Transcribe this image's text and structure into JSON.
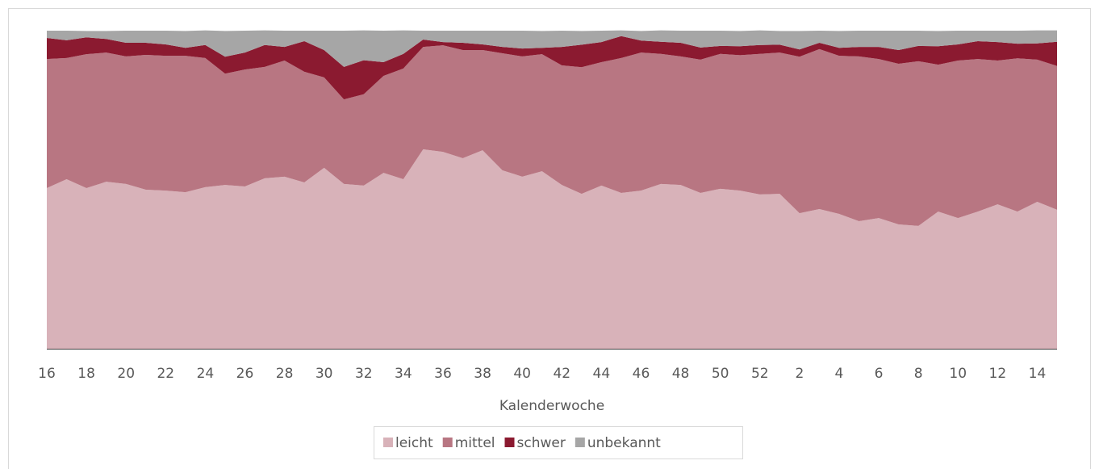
{
  "chart_data": {
    "type": "stacked-area",
    "x_label": "Kalenderwoche",
    "categories": [
      "16",
      null,
      "18",
      null,
      "20",
      null,
      "22",
      null,
      "24",
      null,
      "26",
      null,
      "28",
      null,
      "30",
      null,
      "32",
      null,
      "34",
      null,
      "36",
      null,
      "38",
      null,
      "40",
      null,
      "42",
      null,
      "44",
      null,
      "46",
      null,
      "48",
      null,
      "50",
      null,
      "52",
      null,
      "2",
      null,
      "4",
      null,
      "6",
      null,
      "8",
      null,
      "10",
      null,
      "12",
      null,
      "14",
      null
    ],
    "ylim": [
      0,
      100
    ],
    "legend": "bottom",
    "series": [
      {
        "name": "leicht",
        "color": "#d8b2b9",
        "values": [
          50.5,
          53.3,
          50.5,
          52.5,
          51.8,
          50.0,
          49.7,
          49.2,
          50.8,
          51.5,
          51.0,
          53.6,
          54.1,
          52.3,
          56.9,
          51.8,
          51.3,
          55.3,
          53.3,
          62.7,
          61.9,
          59.9,
          62.4,
          56.1,
          54.1,
          55.8,
          51.5,
          48.7,
          51.3,
          49.0,
          49.7,
          51.8,
          51.5,
          49.0,
          50.3,
          49.7,
          48.5,
          48.7,
          42.6,
          43.9,
          42.4,
          40.1,
          41.1,
          39.1,
          38.6,
          43.1,
          41.1,
          43.1,
          45.4,
          43.1,
          46.2,
          43.7
        ]
      },
      {
        "name": "mittel",
        "color": "#b87682",
        "values": [
          40.6,
          38.1,
          42.1,
          40.6,
          40.1,
          42.4,
          42.4,
          42.9,
          40.6,
          35.0,
          36.8,
          35.0,
          36.5,
          34.8,
          28.4,
          26.6,
          28.7,
          30.5,
          34.8,
          32.2,
          33.5,
          34.0,
          31.5,
          36.8,
          37.8,
          36.8,
          37.6,
          39.8,
          38.8,
          42.4,
          43.4,
          40.9,
          40.4,
          41.9,
          42.4,
          42.6,
          44.2,
          44.4,
          49.2,
          50.3,
          49.7,
          51.8,
          50.0,
          50.5,
          51.8,
          46.2,
          49.5,
          48.0,
          45.2,
          48.2,
          44.7,
          45.2
        ]
      },
      {
        "name": "schwer",
        "color": "#8b1a30",
        "values": [
          6.6,
          5.6,
          5.3,
          4.3,
          4.3,
          3.8,
          3.6,
          2.5,
          4.1,
          5.3,
          5.3,
          6.9,
          4.3,
          9.6,
          8.6,
          10.2,
          10.7,
          4.3,
          4.6,
          2.3,
          1.0,
          2.3,
          1.8,
          2.0,
          2.5,
          2.0,
          5.8,
          7.1,
          6.3,
          6.9,
          3.8,
          3.8,
          4.3,
          3.8,
          2.5,
          2.8,
          2.8,
          2.5,
          2.3,
          2.0,
          2.5,
          3.0,
          3.8,
          4.3,
          4.8,
          5.8,
          5.1,
          5.6,
          5.8,
          4.6,
          5.1,
          7.6
        ]
      },
      {
        "name": "unbekannt",
        "color": "#a6a6a6",
        "values": [
          2.3,
          3.0,
          2.0,
          2.5,
          3.8,
          3.8,
          4.3,
          5.3,
          4.6,
          8.1,
          6.9,
          4.6,
          5.1,
          3.3,
          6.1,
          11.4,
          9.4,
          9.9,
          7.4,
          2.8,
          3.6,
          3.8,
          4.3,
          5.1,
          5.6,
          5.3,
          5.1,
          4.3,
          3.6,
          1.8,
          3.0,
          3.6,
          3.8,
          5.3,
          4.8,
          4.8,
          4.6,
          4.3,
          5.8,
          3.8,
          5.3,
          5.1,
          5.1,
          6.1,
          4.8,
          4.8,
          4.3,
          3.3,
          3.6,
          4.1,
          4.1,
          3.6
        ]
      }
    ]
  }
}
